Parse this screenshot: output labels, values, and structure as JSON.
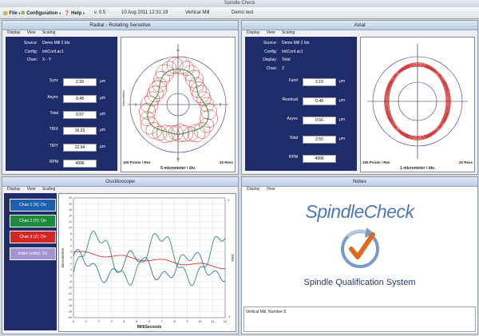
{
  "window": {
    "title": "Spindle Check"
  },
  "menubar": {
    "file": "File",
    "configuration": "Configuration",
    "help": "Help",
    "version": "v. 0.5",
    "datetime": "10 Aug 2011 12:31:19",
    "machine": "Vertical Mill",
    "test": "Demo test"
  },
  "radial": {
    "title": "Radial - Rotating Sensitive",
    "tabs": [
      "Display",
      "View",
      "Scaling"
    ],
    "meta": [
      {
        "label": "Source:",
        "value": "Demo Mill 2 Ids"
      },
      {
        "label": "Config:",
        "value": "InitConf.ac1"
      },
      {
        "label": "Chan:",
        "value": "X - Y"
      }
    ],
    "values": [
      {
        "label": "Sync",
        "value": "2.39",
        "unit": "μm"
      },
      {
        "label": "Async",
        "value": "0.48",
        "unit": "μm"
      },
      {
        "label": "Total",
        "value": "0.97",
        "unit": "μm"
      },
      {
        "label": "TIRX",
        "value": "16.33",
        "unit": "μm"
      },
      {
        "label": "TIRY",
        "value": "22.94",
        "unit": "μm"
      },
      {
        "label": "RPM",
        "value": "4996",
        "unit": ""
      }
    ],
    "plot": {
      "ylabel": "micrometer",
      "points": "100 Points / Rev",
      "scale": "5 micrometer / div.",
      "revs": "20 Revs"
    }
  },
  "axial": {
    "title": "Axial",
    "tabs": [
      "Display",
      "View",
      "Scaling"
    ],
    "meta": [
      {
        "label": "Source:",
        "value": "Demo Mill 2 Ids"
      },
      {
        "label": "Config:",
        "value": "InitConf.ac1"
      },
      {
        "label": "Display:",
        "value": "Total"
      },
      {
        "label": "Chan:",
        "value": "Z"
      }
    ],
    "values": [
      {
        "label": "Fund",
        "value": "2.10",
        "unit": "μm"
      },
      {
        "label": "Residual",
        "value": "0.48",
        "unit": "μm"
      },
      {
        "label": "Async",
        "value": "0.56",
        "unit": "μm"
      },
      {
        "label": "Total",
        "value": "2.55",
        "unit": "μm"
      },
      {
        "label": "RPM",
        "value": "4996",
        "unit": ""
      }
    ],
    "plot": {
      "points": "100 Points / Rev",
      "scale": "1 micrometer / div.",
      "revs": "20 Revs"
    }
  },
  "oscilloscope": {
    "title": "Oscilloscope",
    "tabs": [
      "Display",
      "View",
      "Scaling"
    ],
    "channels": [
      {
        "label": "Chan 1 (X): On",
        "color": "#1f5fb0"
      },
      {
        "label": "Chan 2 (Y): On",
        "color": "#1f8a3c"
      },
      {
        "label": "Chan 3 (Z): On",
        "color": "#d42424"
      },
      {
        "label": "Index (volts): On",
        "color": "#a393d0"
      }
    ],
    "ylabel": "micrometers",
    "y2label": "Volts",
    "y2_top": "1",
    "y2_bottom": "-1",
    "xlabel": "MilliSeconds",
    "yticks": [
      "20",
      "18",
      "16",
      "14",
      "12",
      "10",
      "8",
      "6",
      "4",
      "2",
      "0",
      "-2",
      "-4",
      "-6",
      "-8",
      "-10",
      "-12",
      "-14",
      "-16",
      "-18",
      "-20"
    ],
    "xticks": [
      "0",
      "1",
      "2",
      "3",
      "4",
      "5",
      "6",
      "7",
      "8",
      "9",
      "10",
      "11",
      "12"
    ]
  },
  "notes": {
    "title": "Notes",
    "tabs": [
      "Display",
      "View"
    ],
    "logo_text": "SpindleCheck",
    "subtitle": "Spindle Qualification System",
    "note_text": "Vertical Mill, Number 8."
  },
  "colors": {
    "navy": "#1e2d6a",
    "header": "#c7d7ec",
    "logo_blue": "#4d78b8",
    "check_orange": "#e0681c"
  }
}
